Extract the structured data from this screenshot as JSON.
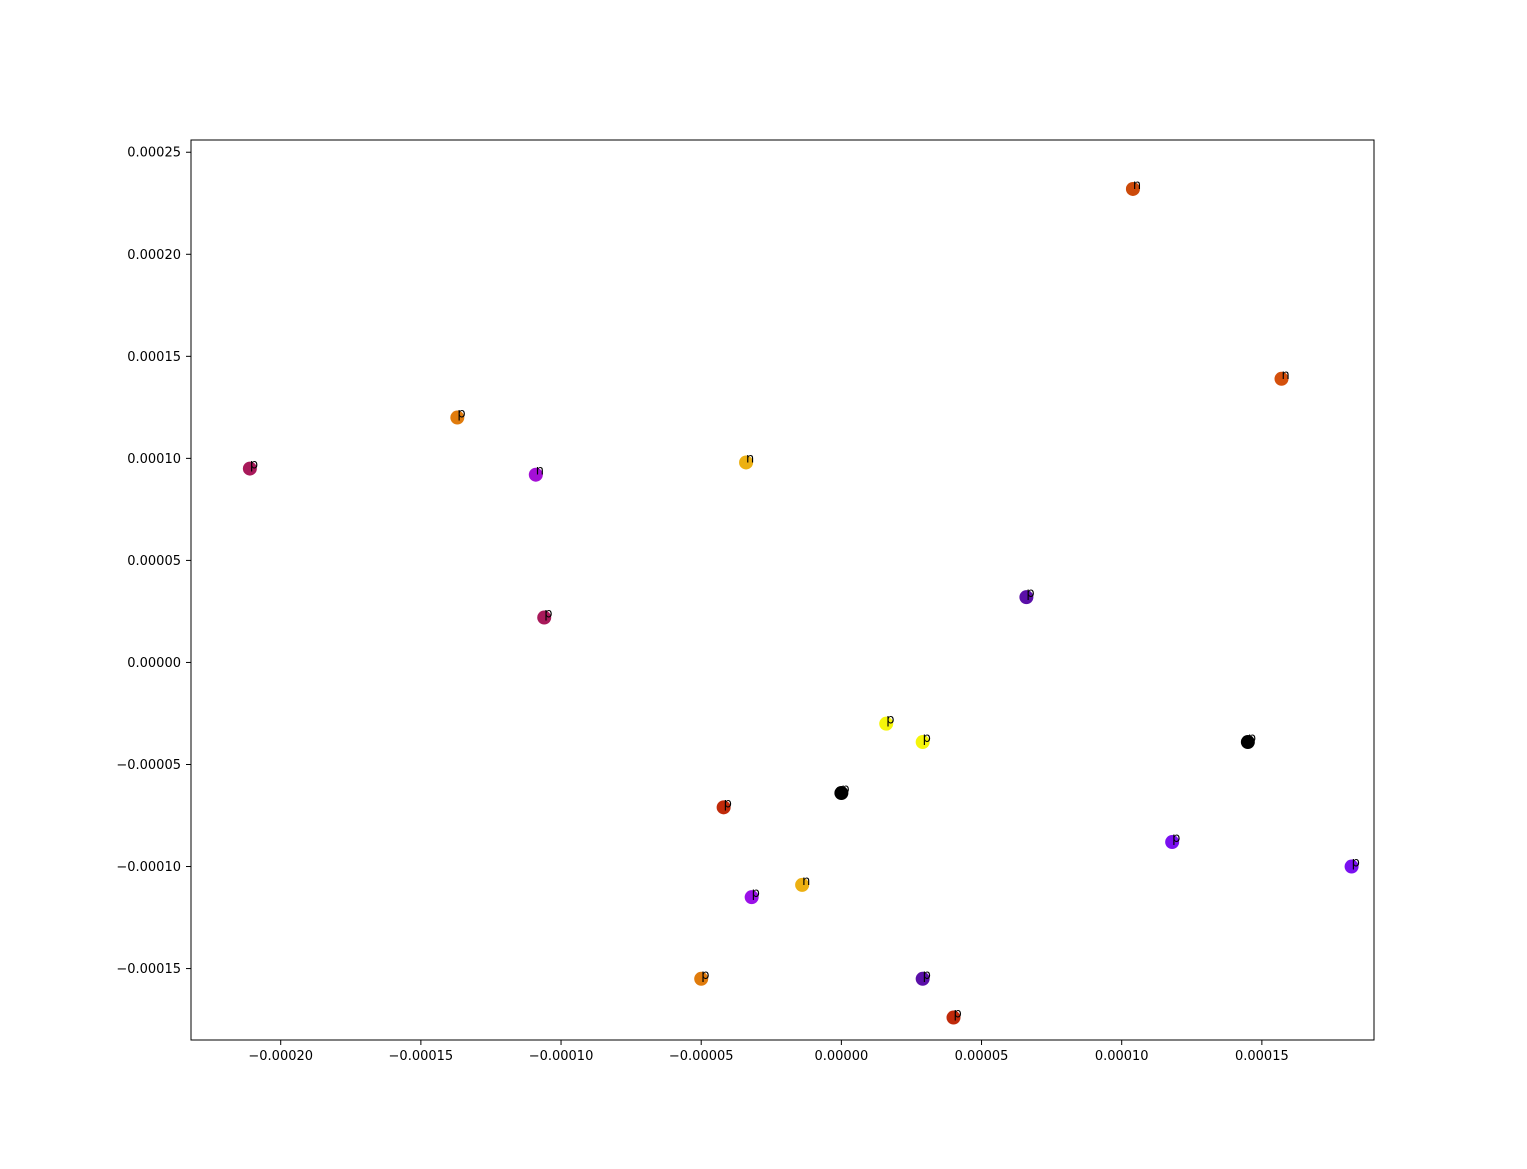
{
  "chart_data": {
    "type": "scatter",
    "title": "",
    "xlabel": "",
    "ylabel": "",
    "xlim": [
      -0.000232,
      0.00019
    ],
    "ylim": [
      -0.000185,
      0.000256
    ],
    "grid": false,
    "legend": "none",
    "x_ticks": [
      {
        "value": -0.0002,
        "label": "−0.00020"
      },
      {
        "value": -0.00015,
        "label": "−0.00015"
      },
      {
        "value": -0.0001,
        "label": "−0.00010"
      },
      {
        "value": -5e-05,
        "label": "−0.00005"
      },
      {
        "value": 0.0,
        "label": "0.00000"
      },
      {
        "value": 5e-05,
        "label": "0.00005"
      },
      {
        "value": 0.0001,
        "label": "0.00010"
      },
      {
        "value": 0.00015,
        "label": "0.00015"
      }
    ],
    "y_ticks": [
      {
        "value": -0.00015,
        "label": "−0.00015"
      },
      {
        "value": -0.0001,
        "label": "−0.00010"
      },
      {
        "value": -5e-05,
        "label": "−0.00005"
      },
      {
        "value": 0.0,
        "label": "0.00000"
      },
      {
        "value": 5e-05,
        "label": "0.00005"
      },
      {
        "value": 0.0001,
        "label": "0.00010"
      },
      {
        "value": 0.00015,
        "label": "0.00015"
      },
      {
        "value": 0.0002,
        "label": "0.00020"
      },
      {
        "value": 0.00025,
        "label": "0.00025"
      }
    ],
    "points": [
      {
        "x": 0.000104,
        "y": 0.000232,
        "label": "n",
        "color": "#cc4a0a"
      },
      {
        "x": 0.000157,
        "y": 0.000139,
        "label": "n",
        "color": "#d4500c"
      },
      {
        "x": -0.000137,
        "y": 0.00012,
        "label": "p",
        "color": "#e07b0c"
      },
      {
        "x": -0.000211,
        "y": 9.5e-05,
        "label": "p",
        "color": "#a8195a"
      },
      {
        "x": -0.000109,
        "y": 9.2e-05,
        "label": "n",
        "color": "#a40fd6"
      },
      {
        "x": -3.4e-05,
        "y": 9.8e-05,
        "label": "n",
        "color": "#ecb012"
      },
      {
        "x": 6.6e-05,
        "y": 3.2e-05,
        "label": "p",
        "color": "#5a0fa8"
      },
      {
        "x": -0.000106,
        "y": 2.2e-05,
        "label": "p",
        "color": "#a8195a"
      },
      {
        "x": 1.6e-05,
        "y": -3e-05,
        "label": "p",
        "color": "#f5f50a"
      },
      {
        "x": 2.9e-05,
        "y": -3.9e-05,
        "label": "p",
        "color": "#f5f50a"
      },
      {
        "x": 0.000145,
        "y": -3.9e-05,
        "label": "p",
        "color": "#000000"
      },
      {
        "x": 0.0,
        "y": -6.4e-05,
        "label": "p",
        "color": "#000000"
      },
      {
        "x": -4.2e-05,
        "y": -7.1e-05,
        "label": "p",
        "color": "#c02a0a"
      },
      {
        "x": 0.000118,
        "y": -8.8e-05,
        "label": "p",
        "color": "#7a10f0"
      },
      {
        "x": 0.000182,
        "y": -0.0001,
        "label": "p",
        "color": "#7a10f0"
      },
      {
        "x": -1.4e-05,
        "y": -0.000109,
        "label": "n",
        "color": "#ecb012"
      },
      {
        "x": -3.2e-05,
        "y": -0.000115,
        "label": "p",
        "color": "#9a10e8"
      },
      {
        "x": -5e-05,
        "y": -0.000155,
        "label": "p",
        "color": "#e07b0c"
      },
      {
        "x": 2.9e-05,
        "y": -0.000155,
        "label": "p",
        "color": "#5a0fa8"
      },
      {
        "x": 4e-05,
        "y": -0.000174,
        "label": "p",
        "color": "#c02a0a"
      }
    ]
  }
}
